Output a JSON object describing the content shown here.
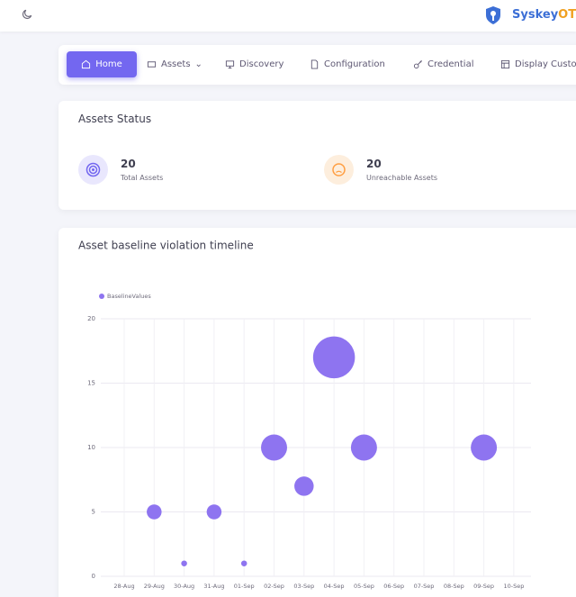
{
  "header": {
    "brand": "Syskey",
    "brand_accent": "OT"
  },
  "nav": [
    "Home",
    "Assets",
    "Discovery",
    "Configuration",
    "Credential",
    "Display Custo"
  ],
  "status": {
    "title": "Assets Status",
    "items": [
      {
        "value": 20,
        "label": "Total Assets"
      },
      {
        "value": 20,
        "label": "Unreachable Assets"
      }
    ]
  },
  "chart_data": {
    "type": "bubble",
    "title": "Asset baseline violation timeline",
    "categories": [
      "28-Aug",
      "29-Aug",
      "30-Aug",
      "31-Aug",
      "01-Sep",
      "02-Sep",
      "03-Sep",
      "04-Sep",
      "05-Sep",
      "06-Sep",
      "07-Sep",
      "08-Sep",
      "09-Sep",
      "10-Sep"
    ],
    "series": [
      {
        "name": "BaselineValues",
        "color": "#8e74f0",
        "values": [
          null,
          5,
          1,
          5,
          1,
          10,
          7,
          17,
          10,
          null,
          null,
          null,
          10,
          null
        ]
      }
    ],
    "ylim": [
      0,
      20
    ],
    "yticks": [
      0,
      5,
      10,
      15,
      20
    ],
    "grid": true,
    "legend": "top-left"
  }
}
